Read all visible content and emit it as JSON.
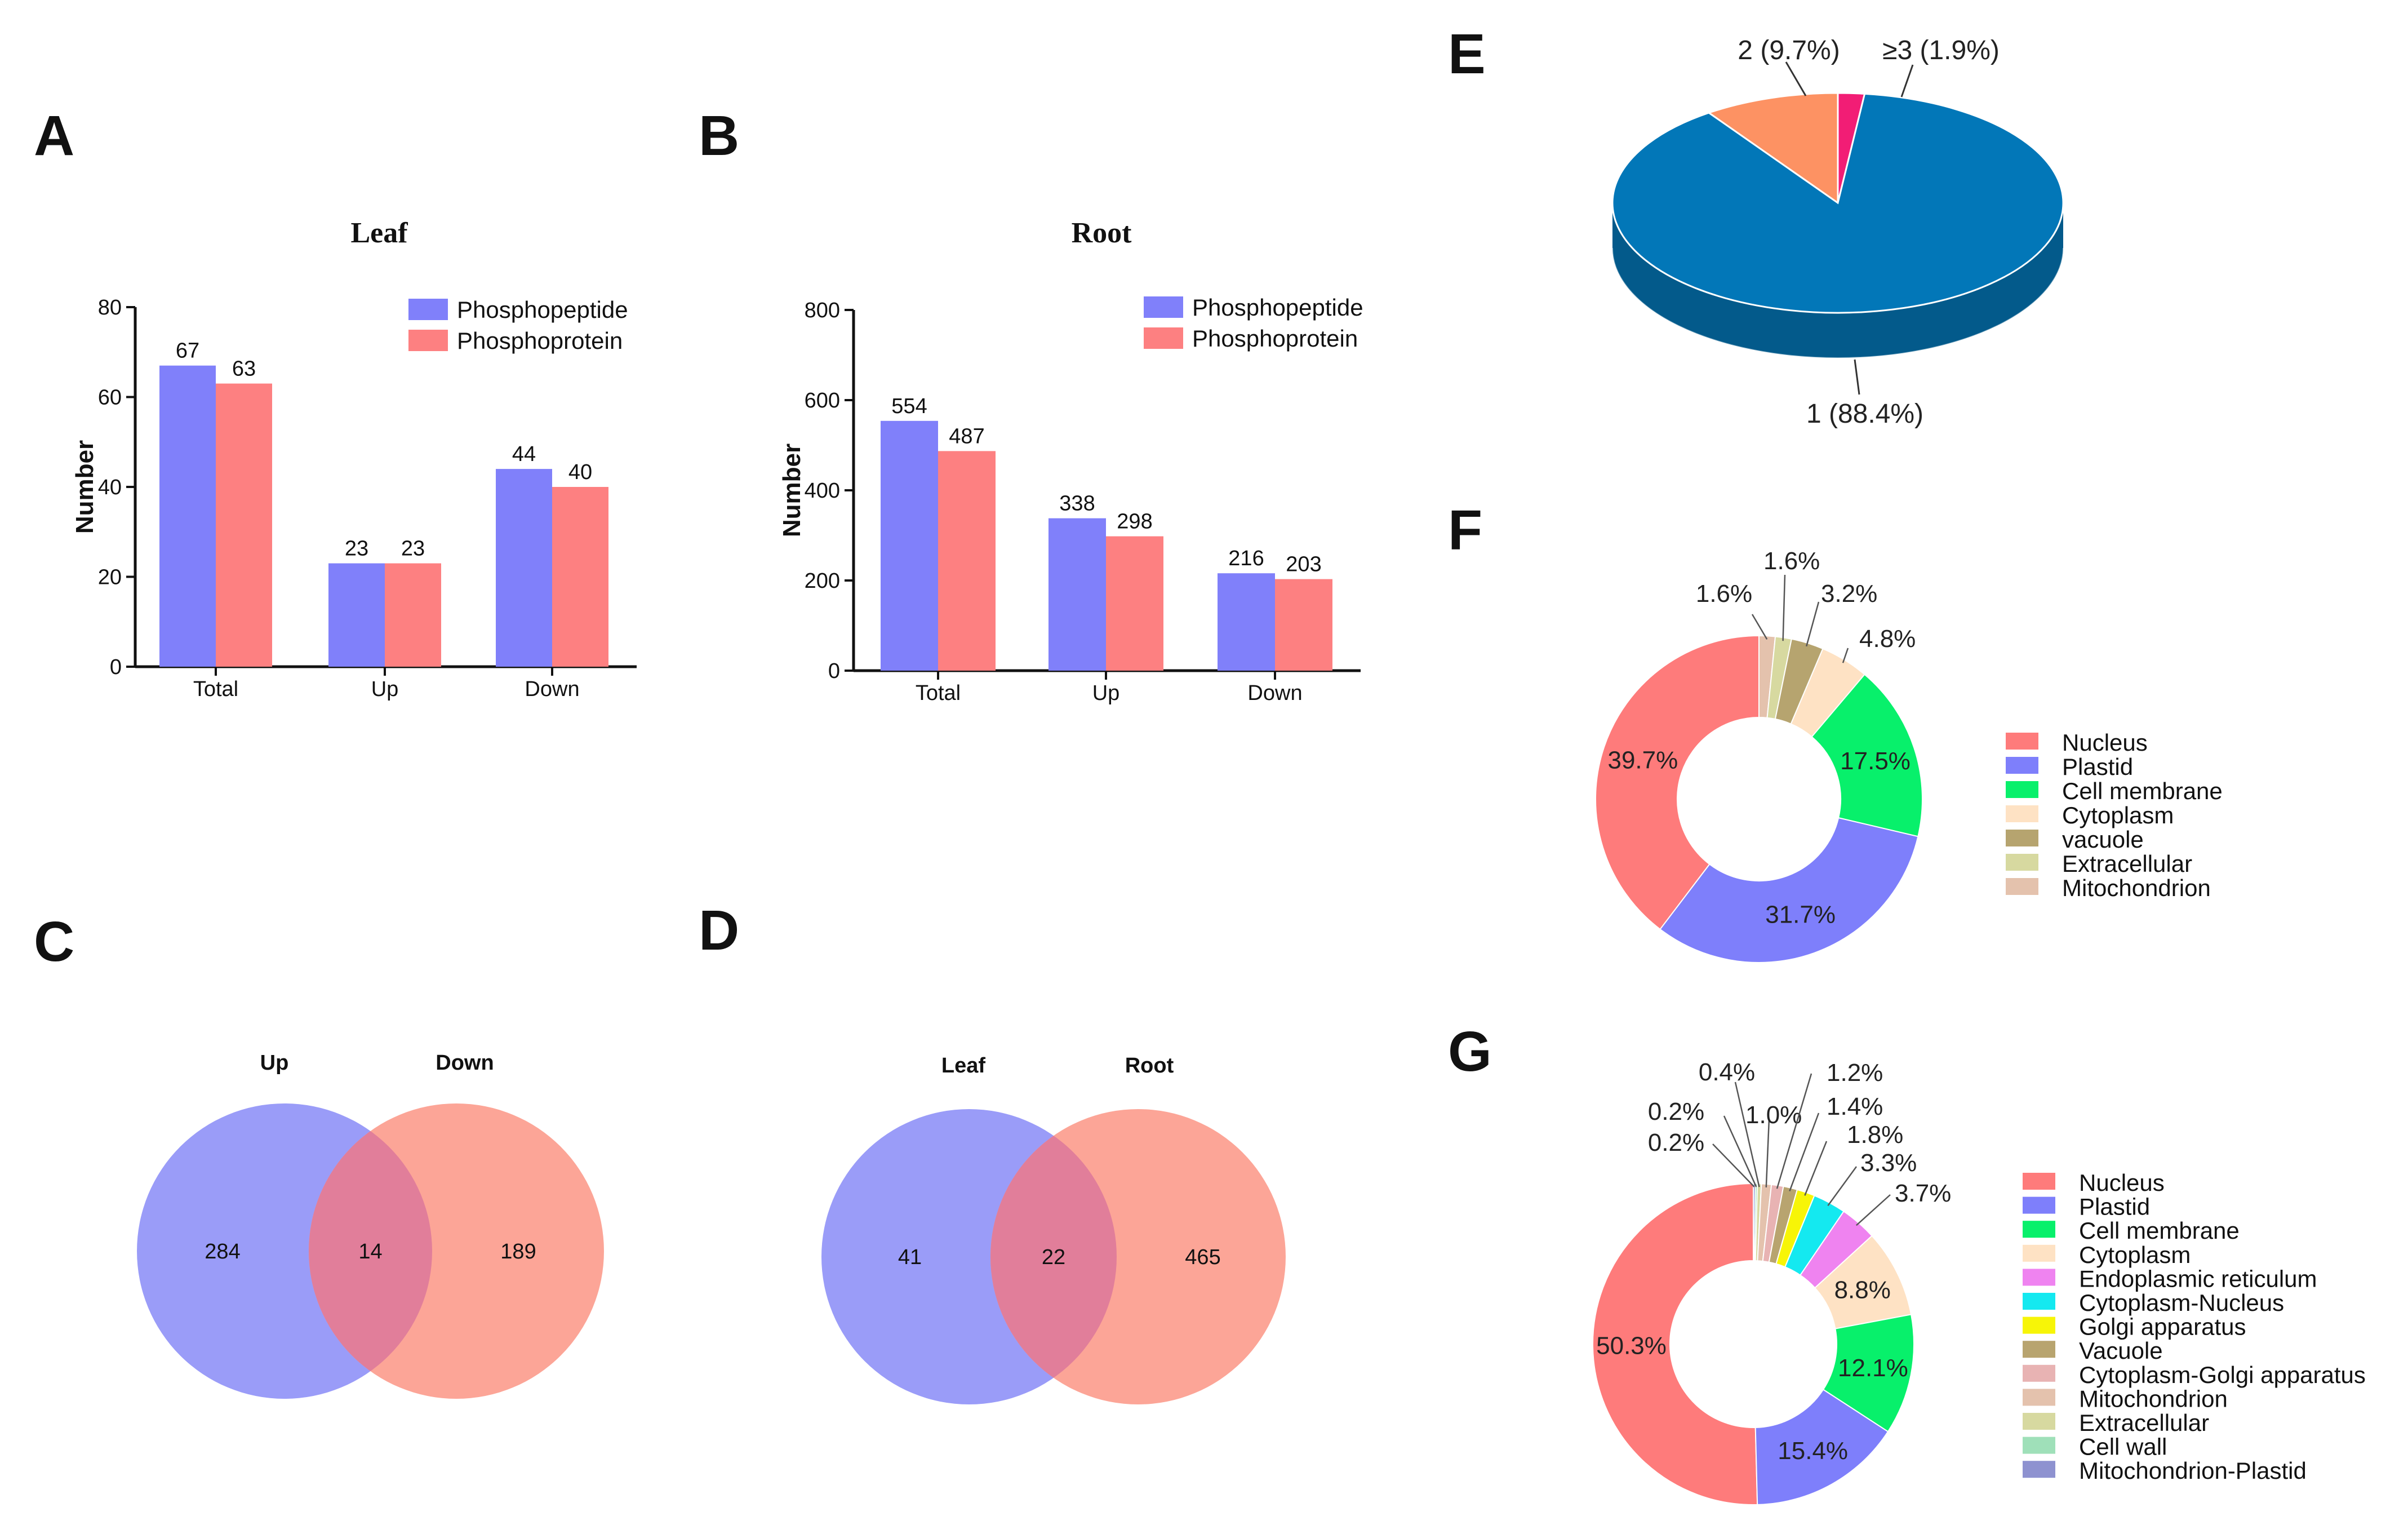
{
  "panel_letters": {
    "A": "A",
    "B": "B",
    "C": "C",
    "D": "D",
    "E": "E",
    "F": "F",
    "G": "G"
  },
  "colors": {
    "phosphopeptide": "#8080fa",
    "phosphoprotein": "#fd8081",
    "venn_left": "#9a9cf8",
    "venn_right": "#fca597",
    "venn_overlap": "#e17e9a",
    "pie_top": [
      "#0277b8",
      "#fd9263",
      "#f21d75"
    ],
    "pie_side": "#035a8b"
  },
  "chart_data": [
    {
      "id": "A",
      "type": "bar",
      "title": "Leaf",
      "xlabel": "",
      "ylabel": "Number",
      "ylim": [
        0,
        80
      ],
      "yticks": [
        "0",
        "20",
        "40",
        "60",
        "80"
      ],
      "categories": [
        "Total",
        "Up",
        "Down"
      ],
      "series": [
        {
          "name": "Phosphopeptide",
          "values": [
            67,
            23,
            44
          ]
        },
        {
          "name": "Phosphoprotein",
          "values": [
            63,
            23,
            40
          ]
        }
      ],
      "legend": "top-right"
    },
    {
      "id": "B",
      "type": "bar",
      "title": "Root",
      "xlabel": "",
      "ylabel": "Number",
      "ylim": [
        0,
        800
      ],
      "yticks": [
        "0",
        "200",
        "400",
        "600",
        "800"
      ],
      "categories": [
        "Total",
        "Up",
        "Down"
      ],
      "series": [
        {
          "name": "Phosphopeptide",
          "values": [
            554,
            338,
            216
          ]
        },
        {
          "name": "Phosphoprotein",
          "values": [
            487,
            298,
            203
          ]
        }
      ],
      "legend": "top-right"
    },
    {
      "id": "C",
      "type": "venn",
      "sets": [
        "Up",
        "Down"
      ],
      "only_left": "284",
      "overlap": "14",
      "only_right": "189"
    },
    {
      "id": "D",
      "type": "venn",
      "sets": [
        "Leaf",
        "Root"
      ],
      "only_left": "41",
      "overlap": "22",
      "only_right": "465"
    },
    {
      "id": "E",
      "type": "pie",
      "style": "3d",
      "slices": [
        {
          "label": "1 (88.4%)",
          "value": 88.4
        },
        {
          "label": "2 (9.7%)",
          "value": 9.7
        },
        {
          "label": "≥3 (1.9%)",
          "value": 1.9
        }
      ]
    },
    {
      "id": "F",
      "type": "pie",
      "style": "donut",
      "slices": [
        {
          "name": "Nucleus",
          "value": 39.7,
          "label": "39.7%",
          "color": "#fe7b7b"
        },
        {
          "name": "Plastid",
          "value": 31.7,
          "label": "31.7%",
          "color": "#7e7ffb"
        },
        {
          "name": "Cell membrane",
          "value": 17.5,
          "label": "17.5%",
          "color": "#08f06b"
        },
        {
          "name": "Cytoplasm",
          "value": 4.8,
          "label": "4.8%",
          "color": "#fee2c4"
        },
        {
          "name": "vacuole",
          "value": 3.2,
          "label": "3.2%",
          "color": "#b6a46f"
        },
        {
          "name": "Extracellular",
          "value": 1.6,
          "label": "1.6%",
          "color": "#d7d9a0"
        },
        {
          "name": "Mitochondrion",
          "value": 1.6,
          "label": "1.6%",
          "color": "#e4c2ad"
        }
      ]
    },
    {
      "id": "G",
      "type": "pie",
      "style": "donut",
      "slices": [
        {
          "name": "Nucleus",
          "value": 50.3,
          "label": "50.3%",
          "color": "#fe7b7b"
        },
        {
          "name": "Plastid",
          "value": 15.4,
          "label": "15.4%",
          "color": "#7e7ffb"
        },
        {
          "name": "Cell membrane",
          "value": 12.1,
          "label": "12.1%",
          "color": "#08f06b"
        },
        {
          "name": "Cytoplasm",
          "value": 8.8,
          "label": "8.8%",
          "color": "#fee2c4"
        },
        {
          "name": "Endoplasmic reticulum",
          "value": 3.7,
          "label": "3.7%",
          "color": "#ef83f0"
        },
        {
          "name": "Cytoplasm-Nucleus",
          "value": 3.3,
          "label": "3.3%",
          "color": "#14e9f0"
        },
        {
          "name": "Golgi apparatus",
          "value": 1.8,
          "label": "1.8%",
          "color": "#f7f507"
        },
        {
          "name": "Vacuole",
          "value": 1.4,
          "label": "1.4%",
          "color": "#b8a46f"
        },
        {
          "name": "Cytoplasm-Golgi apparatus",
          "value": 1.2,
          "label": "1.2%",
          "color": "#e8b3b3"
        },
        {
          "name": "Mitochondrion",
          "value": 1.0,
          "label": "1.0%",
          "color": "#e4c2ad"
        },
        {
          "name": "Extracellular",
          "value": 0.4,
          "label": "0.4%",
          "color": "#d7d9a0"
        },
        {
          "name": "Cell wall",
          "value": 0.2,
          "label": "0.2%",
          "color": "#9fe0b9"
        },
        {
          "name": "Mitochondrion-Plastid",
          "value": 0.2,
          "label": "0.2%",
          "color": "#8e92d0"
        }
      ]
    }
  ]
}
